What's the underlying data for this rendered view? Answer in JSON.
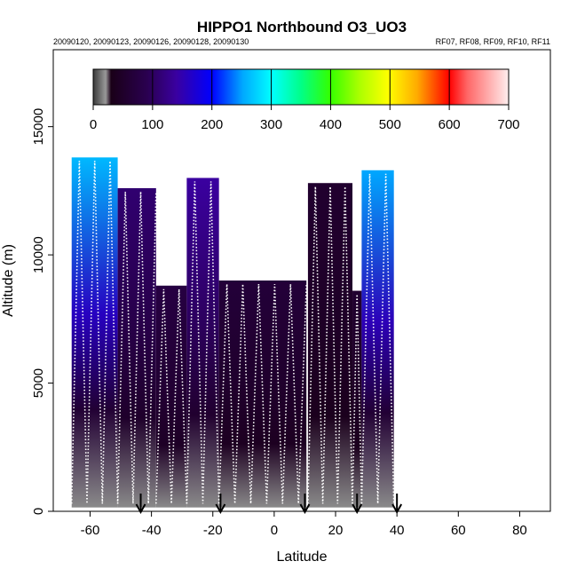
{
  "chart_data": {
    "type": "heatmap",
    "title": "HIPPO1 Northbound O3_UO3",
    "subtitle_left": "20090120, 20090123, 20090126, 20090128, 20090130",
    "subtitle_right": "RF07, RF08, RF09, RF10, RF11",
    "xlabel": "Latitude",
    "ylabel": "Altitude (m)",
    "xlim": [
      -72,
      90
    ],
    "ylim": [
      0,
      18000
    ],
    "x_ticks": [
      "-60",
      "-40",
      "-20",
      "0",
      "20",
      "40",
      "60",
      "80"
    ],
    "x_tick_values": [
      -60,
      -40,
      -20,
      0,
      20,
      40,
      60,
      80
    ],
    "y_ticks": [
      "0",
      "5000",
      "10000",
      "15000"
    ],
    "y_tick_values": [
      0,
      5000,
      10000,
      15000
    ],
    "colorbar": {
      "range": [
        0,
        700
      ],
      "ticks": [
        "0",
        "100",
        "200",
        "300",
        "400",
        "500",
        "600",
        "700"
      ],
      "tick_values": [
        0,
        100,
        200,
        300,
        400,
        500,
        600,
        700
      ]
    },
    "arrow_markers_latitude": [
      -43.5,
      -17.5,
      10,
      27,
      40
    ],
    "coverage_segments": [
      {
        "lat": [
          -66,
          -51
        ],
        "alt_top": 13800,
        "upper_value": 260,
        "lower_value": 60
      },
      {
        "lat": [
          -51,
          -38.5
        ],
        "alt_top": 12600,
        "upper_value": 110,
        "lower_value": 50
      },
      {
        "lat": [
          -38.5,
          -28.5
        ],
        "alt_top": 8800,
        "upper_value": 75,
        "lower_value": 45
      },
      {
        "lat": [
          -28.5,
          -18
        ],
        "alt_top": 13000,
        "upper_value": 140,
        "lower_value": 55
      },
      {
        "lat": [
          -18,
          10.5
        ],
        "alt_top": 9000,
        "upper_value": 65,
        "lower_value": 40
      },
      {
        "lat": [
          11,
          25.5
        ],
        "alt_top": 12800,
        "upper_value": 55,
        "lower_value": 35
      },
      {
        "lat": [
          25.5,
          28.5
        ],
        "alt_top": 8600,
        "upper_value": 55,
        "lower_value": 35
      },
      {
        "lat": [
          28.5,
          39
        ],
        "alt_top": 13300,
        "upper_value": 250,
        "lower_value": 60
      }
    ]
  }
}
